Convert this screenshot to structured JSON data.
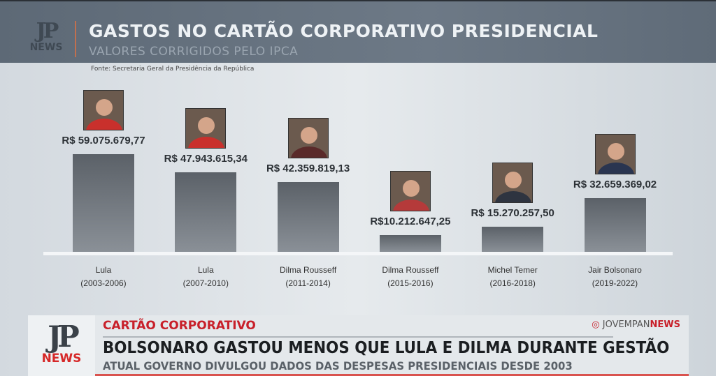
{
  "header": {
    "logo": "JP NEWS",
    "title": "GASTOS NO CARTÃO CORPORATIVO PRESIDENCIAL",
    "subtitle": "VALORES CORRIGIDOS PELO IPCA",
    "source": "Fonte: Secretaria Geral da Presidência da República"
  },
  "chart_data": {
    "type": "bar",
    "title": "GASTOS NO CARTÃO CORPORATIVO PRESIDENCIAL",
    "subtitle": "VALORES CORRIGIDOS PELO IPCA",
    "ylabel": "R$",
    "categories": [
      {
        "name": "Lula",
        "period": "(2003-2006)"
      },
      {
        "name": "Lula",
        "period": "(2007-2010)"
      },
      {
        "name": "Dilma Rousseff",
        "period": "(2011-2014)"
      },
      {
        "name": "Dilma Rousseff",
        "period": "(2015-2016)"
      },
      {
        "name": "Michel Temer",
        "period": "(2016-2018)"
      },
      {
        "name": "Jair Bolsonaro",
        "period": "(2019-2022)"
      }
    ],
    "values": [
      59075679.77,
      47943615.34,
      42359819.13,
      10212647.25,
      15270257.5,
      32659369.02
    ],
    "labels": [
      "R$ 59.075.679,77",
      "R$ 47.943.615,34",
      "R$ 42.359.819,13",
      "R$10.212.647,25",
      "R$ 15.270.257,50",
      "R$ 32.659.369,02"
    ],
    "photo_colors": [
      "#c9302c",
      "#c9302c",
      "#5a2a2a",
      "#b53a3a",
      "#2e3440",
      "#2a3550"
    ],
    "grid": false
  },
  "banner": {
    "logo": "JP NEWS",
    "tag": "CARTÃO CORPORATIVO",
    "instagram_prefix": "JOVEMPAN",
    "instagram_suffix": "NEWS",
    "headline": "BOLSONARO GASTOU MENOS QUE LULA E DILMA DURANTE GESTÃO",
    "subheadline": "ATUAL GOVERNO DIVULGOU DADOS DAS DESPESAS PRESIDENCIAIS DESDE 2003"
  }
}
